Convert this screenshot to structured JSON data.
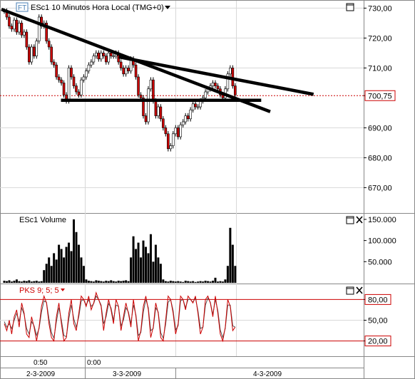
{
  "price_panel": {
    "title": "ESc1 10 Minutos Hora Local (TMG+0)",
    "ft_badge": "FT",
    "y_ticks": [
      "730,00",
      "720,00",
      "710,00",
      "700,75",
      "690,00",
      "680,00",
      "670,00"
    ],
    "last_price_label": "700,75"
  },
  "volume_panel": {
    "title": "ESc1 Volume",
    "y_ticks": [
      "150.000",
      "100.000",
      "50.000"
    ]
  },
  "osc_panel": {
    "title": "PKS 9; 5; 5",
    "y_ticks": [
      "80,00",
      "50,00",
      "20,00"
    ]
  },
  "time_axis": {
    "time_labels": [
      "0:50",
      "0:00"
    ],
    "date_labels": [
      "2-3-2009",
      "3-3-2009",
      "4-3-2009"
    ]
  },
  "colors": {
    "candle_up": "#ffffff",
    "candle_down": "#cc0000",
    "trendline": "#000000",
    "last_price_line": "#cc0000",
    "osc_fast": "#cc0000",
    "osc_slow": "#555555",
    "level_line": "#cc0000",
    "grid": "#d8d8d8"
  },
  "icons": [
    "maximize-icon",
    "close-icon",
    "dropdown-arrow-icon"
  ],
  "chart_data": {
    "type": "candlestick",
    "price": {
      "ylim": [
        662,
        732
      ],
      "last_price": 700.75,
      "close_path": [
        729,
        727,
        724,
        723,
        726,
        722,
        725,
        721,
        722,
        717,
        712,
        717,
        714,
        719,
        727,
        724,
        725,
        719,
        717,
        712,
        711,
        707,
        706,
        705,
        701,
        699,
        710,
        707,
        704,
        702,
        701,
        706,
        707,
        709,
        711,
        712,
        714,
        715,
        713,
        715,
        714,
        712,
        715,
        714,
        714,
        715,
        712,
        710,
        708,
        710,
        709,
        713,
        711,
        707,
        701,
        700,
        694,
        692,
        703,
        706,
        699,
        694,
        697,
        693,
        690,
        688,
        683,
        684,
        688,
        690,
        687,
        691,
        692,
        694,
        693,
        696,
        698,
        697,
        697,
        699,
        700,
        702,
        703,
        704,
        705,
        704,
        703,
        701,
        700,
        703,
        708,
        710,
        704,
        701
      ],
      "trendlines": [
        {
          "from": [
            0.0,
            729.6
          ],
          "to": [
            0.745,
            695.4
          ]
        },
        {
          "from": [
            0.325,
            713.7
          ],
          "to": [
            0.865,
            701.2
          ]
        },
        {
          "from": [
            0.165,
            699.2
          ],
          "to": [
            0.72,
            699.2
          ]
        }
      ]
    },
    "volume": {
      "ylim": [
        0,
        160000
      ],
      "series": [
        5000,
        4000,
        6000,
        3000,
        5000,
        8000,
        4000,
        3000,
        5000,
        4000,
        6000,
        3000,
        4000,
        5000,
        3000,
        4000,
        30000,
        45000,
        60000,
        40000,
        70000,
        55000,
        90000,
        80000,
        60000,
        85000,
        95000,
        75000,
        150000,
        120000,
        90000,
        60000,
        40000,
        8000,
        5000,
        4000,
        3000,
        6000,
        5000,
        4000,
        3000,
        5000,
        4000,
        6000,
        4000,
        3000,
        5000,
        4000,
        5000,
        6000,
        4000,
        60000,
        110000,
        80000,
        95000,
        60000,
        100000,
        85000,
        70000,
        115000,
        50000,
        90000,
        60000,
        45000,
        8000,
        4000,
        3000,
        5000,
        4000,
        3000,
        4000,
        3000,
        2000,
        5000,
        4000,
        3000,
        4000,
        2000,
        3000,
        4000,
        3000,
        5000,
        4000,
        3000,
        5000,
        12000,
        3000,
        4000,
        3000,
        8000,
        40000,
        130000,
        90000,
        40000
      ]
    },
    "oscillator": {
      "ylim": [
        0,
        100
      ],
      "levels": [
        80,
        50,
        20
      ],
      "fast": [
        45,
        35,
        50,
        30,
        55,
        65,
        40,
        75,
        60,
        30,
        25,
        55,
        40,
        20,
        40,
        70,
        85,
        75,
        45,
        25,
        20,
        55,
        75,
        45,
        20,
        25,
        60,
        80,
        45,
        35,
        60,
        85,
        80,
        70,
        85,
        65,
        75,
        90,
        80,
        70,
        35,
        60,
        80,
        65,
        45,
        80,
        70,
        35,
        55,
        75,
        60,
        40,
        80,
        55,
        20,
        35,
        70,
        85,
        65,
        25,
        40,
        75,
        60,
        25,
        20,
        50,
        85,
        80,
        60,
        30,
        45,
        85,
        80,
        65,
        85,
        80,
        75,
        85,
        60,
        30,
        40,
        80,
        85,
        75,
        55,
        85,
        60,
        30,
        20,
        40,
        80,
        70,
        35,
        40
      ],
      "slow": [
        48,
        40,
        45,
        38,
        50,
        60,
        48,
        68,
        58,
        38,
        30,
        48,
        42,
        28,
        38,
        62,
        78,
        76,
        52,
        32,
        24,
        48,
        68,
        50,
        28,
        26,
        52,
        72,
        52,
        40,
        55,
        78,
        80,
        72,
        80,
        70,
        74,
        85,
        80,
        72,
        45,
        55,
        74,
        68,
        50,
        72,
        70,
        42,
        50,
        68,
        62,
        45,
        72,
        58,
        28,
        32,
        62,
        80,
        68,
        35,
        38,
        68,
        62,
        32,
        24,
        44,
        76,
        80,
        64,
        36,
        42,
        78,
        80,
        68,
        80,
        80,
        76,
        82,
        64,
        38,
        40,
        72,
        82,
        76,
        58,
        80,
        64,
        36,
        25,
        38,
        72,
        72,
        42,
        40
      ]
    }
  }
}
